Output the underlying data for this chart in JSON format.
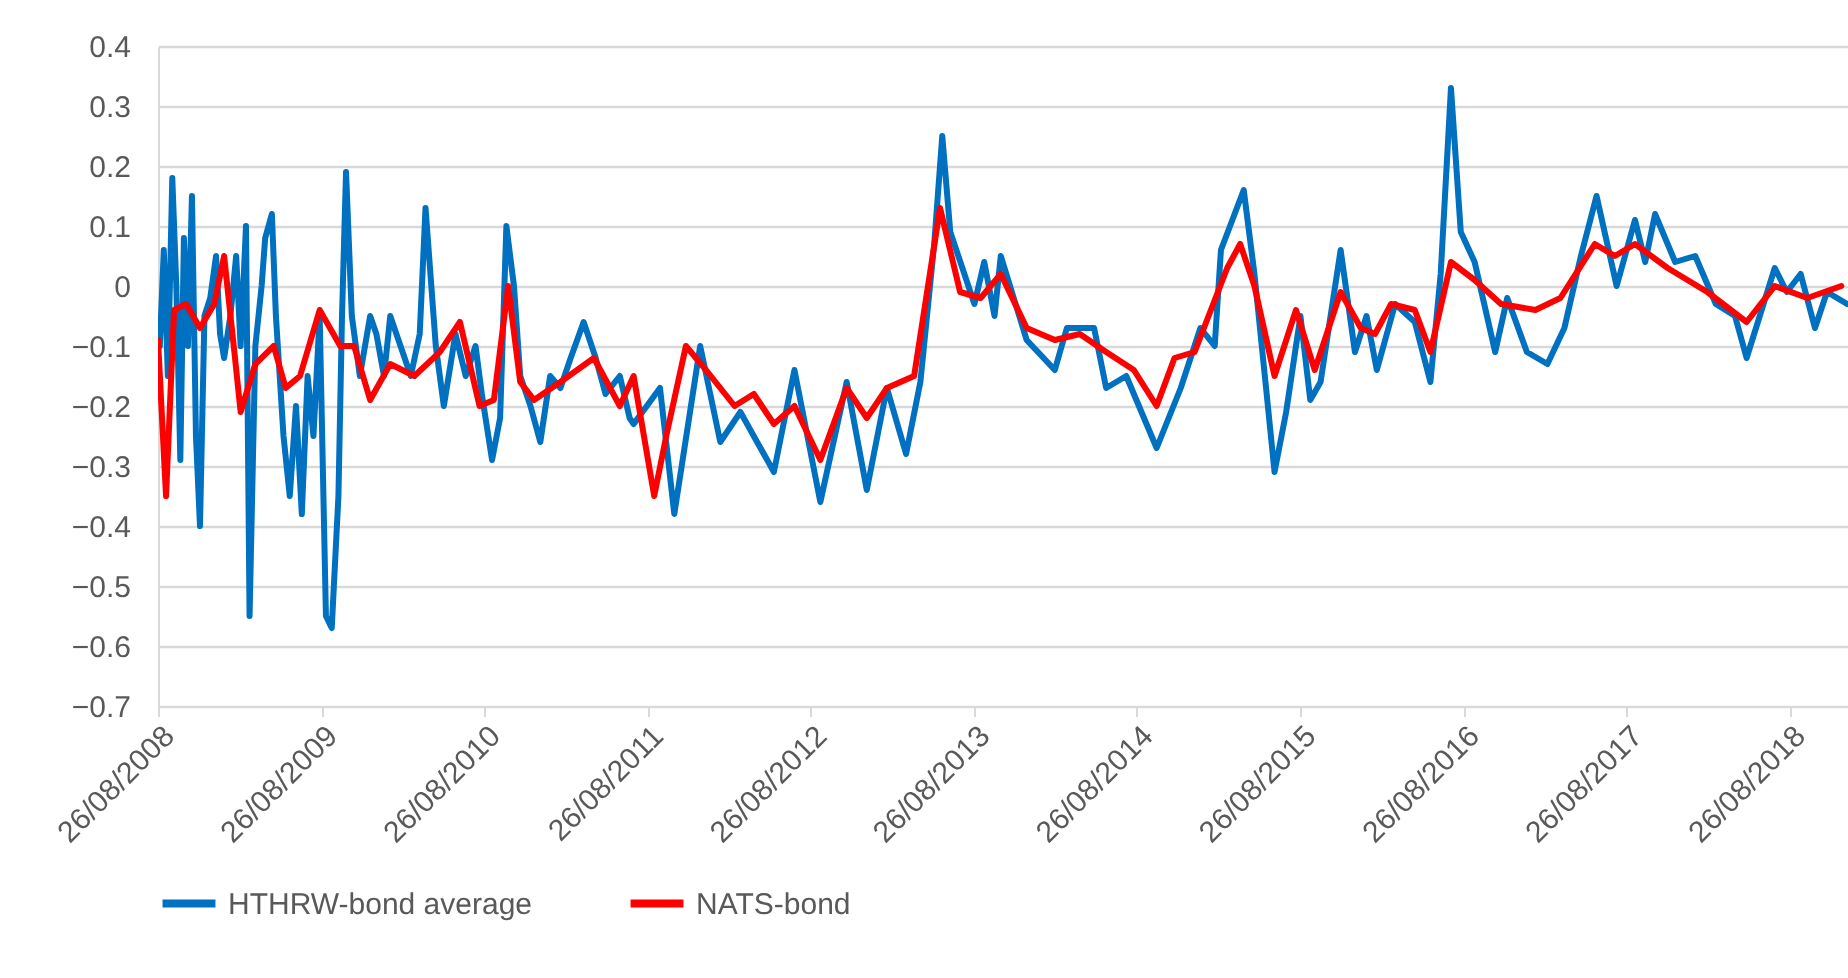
{
  "chart_data": {
    "type": "line",
    "xlim": [
      "2008-08-26",
      "2019-01-05"
    ],
    "xticks": [
      {
        "value": "2008-08-26",
        "label": "26/08/2008"
      },
      {
        "value": "2009-08-26",
        "label": "26/08/2009"
      },
      {
        "value": "2010-08-26",
        "label": "26/08/2010"
      },
      {
        "value": "2011-08-26",
        "label": "26/08/2011"
      },
      {
        "value": "2012-08-26",
        "label": "26/08/2012"
      },
      {
        "value": "2013-08-26",
        "label": "26/08/2013"
      },
      {
        "value": "2014-08-26",
        "label": "26/08/2014"
      },
      {
        "value": "2015-08-26",
        "label": "26/08/2015"
      },
      {
        "value": "2016-08-26",
        "label": "26/08/2016"
      },
      {
        "value": "2017-08-26",
        "label": "26/08/2017"
      },
      {
        "value": "2018-08-26",
        "label": "26/08/2018"
      }
    ],
    "ylim": [
      -0.7,
      0.4
    ],
    "yticks": [
      -0.7,
      -0.6,
      -0.5,
      -0.4,
      -0.3,
      -0.2,
      -0.1,
      0,
      0.1,
      0.2,
      0.3,
      0.4
    ],
    "grid": "y",
    "legend": "bottom",
    "marker": "none",
    "line_style": "solid",
    "series": [
      {
        "name": "HTHRW-bond average",
        "color": "#0070c0",
        "x": [
          "2008-08-30",
          "2008-09-08",
          "2008-09-17",
          "2008-09-27",
          "2008-10-06",
          "2008-10-15",
          "2008-10-23",
          "2008-11-01",
          "2008-11-10",
          "2008-11-19",
          "2008-11-28",
          "2008-12-08",
          "2008-12-21",
          "2009-01-03",
          "2009-01-12",
          "2009-01-21",
          "2009-02-04",
          "2009-02-17",
          "2009-02-27",
          "2009-03-11",
          "2009-03-19",
          "2009-04-01",
          "2009-04-15",
          "2009-04-23",
          "2009-05-08",
          "2009-05-17",
          "2009-06-03",
          "2009-06-17",
          "2009-07-01",
          "2009-07-14",
          "2009-07-27",
          "2009-08-09",
          "2009-08-23",
          "2009-09-06",
          "2009-09-19",
          "2009-10-04",
          "2009-10-12",
          "2009-10-21",
          "2009-11-03",
          "2009-11-21",
          "2009-12-14",
          "2009-12-28",
          "2010-01-14",
          "2010-01-28",
          "2010-02-20",
          "2010-03-15",
          "2010-04-04",
          "2010-04-17",
          "2010-05-10",
          "2010-05-28",
          "2010-06-23",
          "2010-07-16",
          "2010-08-07",
          "2010-08-21",
          "2010-09-13",
          "2010-10-01",
          "2010-10-15",
          "2010-11-01",
          "2010-11-15",
          "2010-12-08",
          "2010-12-30",
          "2011-01-21",
          "2011-02-13",
          "2011-03-08",
          "2011-04-06",
          "2011-05-03",
          "2011-05-25",
          "2011-06-26",
          "2011-07-18",
          "2011-07-27",
          "2011-09-24",
          "2011-10-26",
          "2011-12-23",
          "2012-02-06",
          "2012-03-22",
          "2012-06-05",
          "2012-07-21",
          "2012-09-17",
          "2012-11-15",
          "2012-12-30",
          "2013-02-13",
          "2013-03-28",
          "2013-04-29",
          "2013-05-30",
          "2013-06-17",
          "2013-07-05",
          "2013-08-28",
          "2013-09-19",
          "2013-10-12",
          "2013-10-26",
          "2013-12-23",
          "2014-02-24",
          "2014-03-23",
          "2014-05-23",
          "2014-06-19",
          "2014-08-03",
          "2014-10-10",
          "2014-12-03",
          "2015-01-16",
          "2015-02-17",
          "2015-03-03",
          "2015-04-23",
          "2015-05-17",
          "2015-06-12",
          "2015-07-01",
          "2015-07-27",
          "2015-08-28",
          "2015-09-19",
          "2015-10-12",
          "2015-11-26",
          "2015-12-28",
          "2016-01-23",
          "2016-02-15",
          "2016-03-27",
          "2016-05-10",
          "2016-06-14",
          "2016-07-07",
          "2016-07-30",
          "2016-08-21",
          "2016-09-21",
          "2016-11-06",
          "2016-12-03",
          "2017-01-16",
          "2017-03-03",
          "2017-04-10",
          "2017-05-17",
          "2017-06-21",
          "2017-08-05",
          "2017-09-15",
          "2017-10-08",
          "2017-10-30",
          "2017-12-14",
          "2018-01-28",
          "2018-03-15",
          "2018-04-27",
          "2018-05-23",
          "2018-07-25",
          "2018-08-21",
          "2018-09-21",
          "2018-10-23",
          "2018-11-19",
          "2019-01-03"
        ],
        "values": [
          -0.1,
          0.06,
          -0.15,
          0.18,
          0.0,
          -0.29,
          0.08,
          -0.1,
          0.15,
          -0.25,
          -0.4,
          -0.05,
          -0.02,
          0.05,
          -0.08,
          -0.12,
          -0.05,
          0.05,
          -0.1,
          0.1,
          -0.55,
          -0.1,
          0.0,
          0.08,
          0.12,
          -0.05,
          -0.25,
          -0.35,
          -0.2,
          -0.38,
          -0.15,
          -0.25,
          -0.05,
          -0.55,
          -0.57,
          -0.35,
          -0.05,
          0.19,
          -0.05,
          -0.15,
          -0.05,
          -0.08,
          -0.15,
          -0.05,
          -0.1,
          -0.15,
          -0.08,
          0.13,
          -0.1,
          -0.2,
          -0.08,
          -0.15,
          -0.1,
          -0.18,
          -0.29,
          -0.22,
          0.1,
          0.0,
          -0.15,
          -0.2,
          -0.26,
          -0.15,
          -0.17,
          -0.12,
          -0.06,
          -0.12,
          -0.18,
          -0.15,
          -0.22,
          -0.23,
          -0.17,
          -0.38,
          -0.1,
          -0.26,
          -0.21,
          -0.31,
          -0.14,
          -0.36,
          -0.16,
          -0.34,
          -0.17,
          -0.28,
          -0.16,
          0.07,
          0.25,
          0.09,
          -0.03,
          0.04,
          -0.05,
          0.05,
          -0.09,
          -0.14,
          -0.07,
          -0.07,
          -0.17,
          -0.15,
          -0.27,
          -0.17,
          -0.07,
          -0.1,
          0.06,
          0.16,
          0.02,
          -0.17,
          -0.31,
          -0.21,
          -0.05,
          -0.19,
          -0.16,
          0.06,
          -0.11,
          -0.05,
          -0.14,
          -0.03,
          -0.06,
          -0.16,
          0.02,
          0.33,
          0.09,
          0.04,
          -0.11,
          -0.02,
          -0.11,
          -0.13,
          -0.07,
          0.05,
          0.15,
          0.0,
          0.11,
          0.04,
          0.12,
          0.04,
          0.05,
          -0.03,
          -0.05,
          -0.12,
          0.03,
          -0.01,
          0.02,
          -0.07,
          -0.01,
          -0.03
        ]
      },
      {
        "name": "NATS-bond",
        "color": "#ff0000",
        "x": [
          "2008-08-26",
          "2008-09-13",
          "2008-10-01",
          "2008-10-28",
          "2008-11-28",
          "2008-12-30",
          "2009-01-21",
          "2009-02-13",
          "2009-02-27",
          "2009-04-01",
          "2009-05-12",
          "2009-06-08",
          "2009-07-10",
          "2009-08-23",
          "2009-10-08",
          "2009-11-08",
          "2009-12-14",
          "2010-01-28",
          "2010-03-23",
          "2010-05-19",
          "2010-07-03",
          "2010-08-16",
          "2010-09-17",
          "2010-10-19",
          "2010-11-15",
          "2010-12-16",
          "2011-02-13",
          "2011-04-29",
          "2011-06-26",
          "2011-07-27",
          "2011-09-11",
          "2011-10-08",
          "2011-11-21",
          "2012-01-05",
          "2012-03-09",
          "2012-04-21",
          "2012-06-05",
          "2012-07-21",
          "2012-09-17",
          "2012-11-15",
          "2012-12-30",
          "2013-02-13",
          "2013-04-15",
          "2013-06-12",
          "2013-07-27",
          "2013-09-11",
          "2013-10-26",
          "2013-12-23",
          "2014-02-24",
          "2014-04-21",
          "2014-06-19",
          "2014-08-20",
          "2014-10-10",
          "2014-11-19",
          "2015-01-03",
          "2015-03-17",
          "2015-04-15",
          "2015-05-17",
          "2015-07-01",
          "2015-08-18",
          "2015-09-29",
          "2015-11-26",
          "2016-01-10",
          "2016-02-11",
          "2016-03-18",
          "2016-05-10",
          "2016-06-14",
          "2016-07-30",
          "2016-09-21",
          "2016-11-19",
          "2017-02-04",
          "2017-04-01",
          "2017-06-17",
          "2017-08-01",
          "2017-09-15",
          "2017-11-27",
          "2018-02-24",
          "2018-05-23",
          "2018-07-25",
          "2018-10-06",
          "2018-12-21"
        ],
        "values": [
          -0.09,
          -0.35,
          -0.04,
          -0.03,
          -0.07,
          -0.03,
          0.05,
          -0.11,
          -0.21,
          -0.13,
          -0.1,
          -0.17,
          -0.15,
          -0.04,
          -0.1,
          -0.1,
          -0.19,
          -0.13,
          -0.15,
          -0.11,
          -0.06,
          -0.2,
          -0.19,
          0.0,
          -0.16,
          -0.19,
          -0.16,
          -0.12,
          -0.2,
          -0.15,
          -0.35,
          -0.25,
          -0.1,
          -0.14,
          -0.2,
          -0.18,
          -0.23,
          -0.2,
          -0.29,
          -0.17,
          -0.22,
          -0.17,
          -0.15,
          0.13,
          -0.01,
          -0.02,
          0.02,
          -0.07,
          -0.09,
          -0.08,
          -0.11,
          -0.14,
          -0.2,
          -0.12,
          -0.11,
          0.03,
          0.07,
          0.0,
          -0.15,
          -0.04,
          -0.14,
          -0.01,
          -0.07,
          -0.08,
          -0.03,
          -0.04,
          -0.11,
          0.04,
          0.01,
          -0.03,
          -0.04,
          -0.02,
          0.07,
          0.05,
          0.07,
          0.03,
          -0.01,
          -0.06,
          0.0,
          -0.02,
          0.0
        ]
      }
    ]
  }
}
